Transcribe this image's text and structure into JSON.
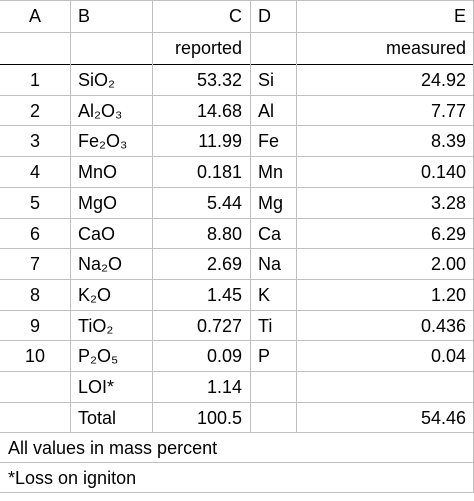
{
  "table": {
    "columns": [
      "A",
      "B",
      "C",
      "D",
      "E"
    ],
    "subheader": {
      "C": "reported",
      "E": "measured"
    },
    "rows": [
      [
        "1",
        "SiO₂",
        "53.32",
        "Si",
        "24.92"
      ],
      [
        "2",
        "Al₂O₃",
        "14.68",
        "Al",
        "7.77"
      ],
      [
        "3",
        "Fe₂O₃",
        "11.99",
        "Fe",
        "8.39"
      ],
      [
        "4",
        "MnO",
        "0.181",
        "Mn",
        "0.140"
      ],
      [
        "5",
        "MgO",
        "5.44",
        "Mg",
        "3.28"
      ],
      [
        "6",
        "CaO",
        "8.80",
        "Ca",
        "6.29"
      ],
      [
        "7",
        "Na₂O",
        "2.69",
        "Na",
        "2.00"
      ],
      [
        "8",
        "K₂O",
        "1.45",
        "K",
        "1.20"
      ],
      [
        "9",
        "TiO₂",
        "0.727",
        "Ti",
        "0.436"
      ],
      [
        "10",
        "P₂O₅",
        "0.09",
        "P",
        "0.04"
      ],
      [
        null,
        "LOI*",
        "1.14",
        null,
        null
      ],
      [
        null,
        "Total",
        "100.5",
        null,
        "54.46"
      ]
    ],
    "notes": [
      "All values in mass percent",
      "*Loss on igniton"
    ]
  }
}
